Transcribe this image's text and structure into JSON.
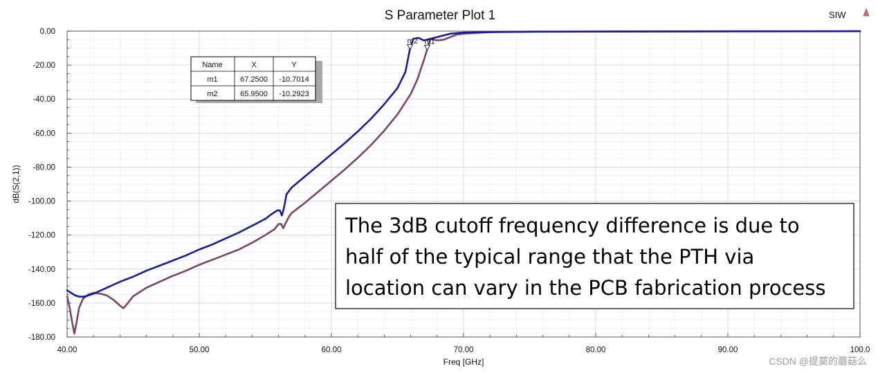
{
  "chart_data": {
    "type": "line",
    "title": "S Parameter Plot 1",
    "legend_label": "SIW",
    "xlabel": "Freq [GHz]",
    "ylabel": "dB(S(2,1))",
    "xlim": [
      40,
      100
    ],
    "ylim": [
      -180,
      0
    ],
    "x_ticks": [
      "40.00",
      "50.00",
      "60.00",
      "70.00",
      "80.00",
      "90.00",
      "100.0"
    ],
    "y_ticks": [
      "0.00",
      "-20.00",
      "-40.00",
      "-60.00",
      "-80.00",
      "-100.00",
      "-120.00",
      "-140.00",
      "-160.00",
      "-180.00"
    ],
    "grid": true,
    "series": [
      {
        "color": "#1a1aa0",
        "x": [
          40.0,
          40.3,
          40.6,
          40.9,
          41.2,
          41.5,
          42.0,
          43.0,
          44.0,
          45.0,
          46.0,
          47.0,
          48.0,
          49.0,
          50.0,
          51.0,
          52.0,
          53.0,
          54.0,
          55.0,
          55.5,
          55.9,
          56.1,
          56.25,
          56.4,
          56.6,
          57.0,
          58.0,
          59.0,
          60.0,
          61.0,
          62.0,
          63.0,
          64.0,
          65.0,
          65.6,
          65.95,
          66.2,
          66.6,
          67.0,
          67.5,
          68.0,
          68.5,
          69.0,
          70.0,
          72.0,
          75.0,
          80.0,
          90.0,
          100.0
        ],
        "y": [
          -152.5,
          -154.0,
          -155.5,
          -156.2,
          -156.3,
          -155.8,
          -154.5,
          -151.0,
          -147.5,
          -144.5,
          -141.0,
          -138.0,
          -135.0,
          -132.0,
          -128.5,
          -125.5,
          -122.0,
          -118.5,
          -114.5,
          -110.5,
          -107.5,
          -105.5,
          -105.5,
          -108.5,
          -104.5,
          -96.0,
          -92.0,
          -85.5,
          -79.0,
          -72.5,
          -66.0,
          -59.0,
          -51.5,
          -43.0,
          -33.5,
          -24.0,
          -10.29,
          -4.5,
          -4.0,
          -5.5,
          -4.5,
          -3.5,
          -2.5,
          -1.5,
          -0.8,
          -0.6,
          -0.3,
          -0.2,
          -0.1,
          -0.05
        ]
      },
      {
        "color": "#7a4467",
        "x": [
          40.0,
          40.2,
          40.4,
          40.55,
          40.7,
          40.9,
          41.2,
          41.6,
          42.0,
          42.5,
          43.0,
          43.5,
          44.0,
          44.25,
          44.5,
          45.0,
          46.0,
          47.0,
          48.0,
          49.0,
          50.0,
          51.0,
          52.0,
          53.0,
          54.0,
          55.0,
          55.7,
          56.0,
          56.2,
          56.35,
          56.5,
          56.8,
          57.0,
          58.0,
          59.0,
          60.0,
          61.0,
          62.0,
          63.0,
          64.0,
          65.0,
          66.0,
          66.5,
          67.0,
          67.25,
          67.5,
          68.0,
          68.5,
          69.0,
          69.5,
          70.0,
          72.0,
          75.0,
          80.0,
          90.0,
          100.0
        ],
        "y": [
          -156.0,
          -163.0,
          -172.0,
          -178.0,
          -172.0,
          -163.0,
          -157.5,
          -155.0,
          -154.0,
          -154.5,
          -155.5,
          -158.0,
          -161.5,
          -163.0,
          -161.0,
          -156.0,
          -151.0,
          -147.5,
          -144.0,
          -141.0,
          -137.5,
          -134.5,
          -131.5,
          -128.5,
          -124.5,
          -120.0,
          -116.5,
          -113.5,
          -113.5,
          -116.0,
          -113.5,
          -109.0,
          -107.0,
          -101.0,
          -94.5,
          -88.0,
          -81.5,
          -74.5,
          -67.0,
          -58.5,
          -49.0,
          -37.0,
          -28.5,
          -17.0,
          -10.7,
          -4.5,
          -5.5,
          -5.0,
          -3.5,
          -2.0,
          -1.5,
          -0.6,
          -0.4,
          -0.3,
          -0.2,
          -0.1
        ]
      }
    ],
    "markers": [
      {
        "label": "m2",
        "x": 65.95,
        "y": -10.29
      },
      {
        "label": "m1",
        "x": 67.25,
        "y": -10.7
      }
    ],
    "marker_table": {
      "headers": [
        "Name",
        "X",
        "Y"
      ],
      "rows": [
        [
          "m1",
          "67.2500",
          "-10.7014"
        ],
        [
          "m2",
          "65.9500",
          "-10.2923"
        ]
      ]
    },
    "annotation_lines": [
      "The 3dB cutoff frequency difference is due to",
      "half of the typical range that the PTH via",
      "location can vary in the PCB fabrication process"
    ]
  },
  "watermark": "CSDN @提莫的蘑菇么",
  "legend_icon": "triangle-marker-icon",
  "colors": {
    "grid": "#d9d9d9",
    "axis": "#555555"
  }
}
